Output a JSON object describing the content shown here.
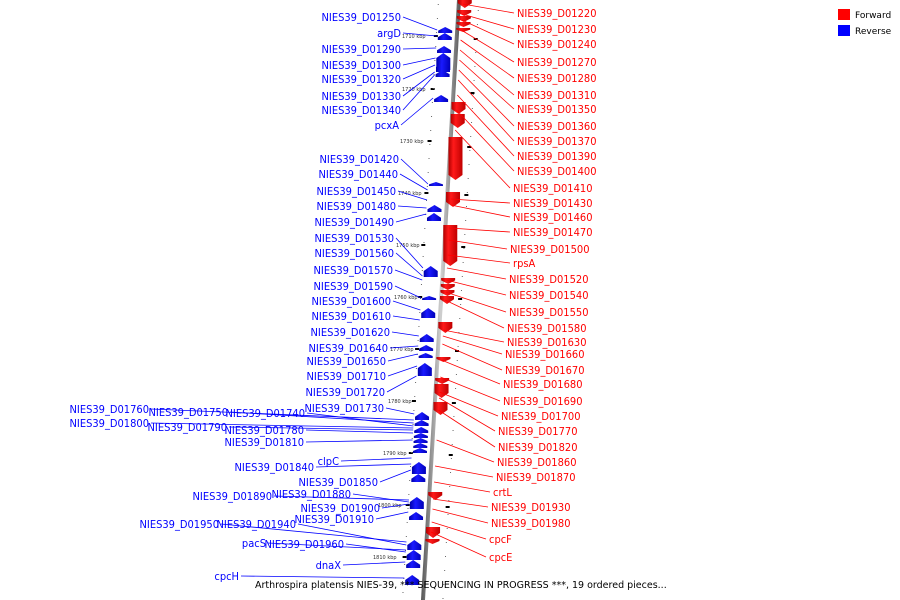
{
  "legend": [
    {
      "label": "Forward",
      "color": "#ff0000"
    },
    {
      "label": "Reverse",
      "color": "#0000ff"
    }
  ],
  "caption": "Arthrospira platensis NIES-39, *** SEQUENCING IN PROGRESS ***, 19 ordered pieces...",
  "ticks": [
    "1710 kbp",
    "1720 kbp",
    "1730 kbp",
    "1740 kbp",
    "1750 kbp",
    "1760 kbp",
    "1770 kbp",
    "1780 kbp",
    "1790 kbp",
    "1800 kbp",
    "1810 kbp"
  ],
  "forward_labels": [
    "NIES39_D01220",
    "NIES39_D01230",
    "NIES39_D01240",
    "NIES39_D01270",
    "NIES39_D01280",
    "NIES39_D01310",
    "NIES39_D01350",
    "NIES39_D01360",
    "NIES39_D01370",
    "NIES39_D01390",
    "NIES39_D01400",
    "NIES39_D01410",
    "NIES39_D01430",
    "NIES39_D01460",
    "NIES39_D01470",
    "NIES39_D01500",
    "rpsA",
    "NIES39_D01520",
    "NIES39_D01540",
    "NIES39_D01550",
    "NIES39_D01580",
    "NIES39_D01630",
    "NIES39_D01660",
    "NIES39_D01670",
    "NIES39_D01680",
    "NIES39_D01690",
    "NIES39_D01700",
    "NIES39_D01770",
    "NIES39_D01820",
    "NIES39_D01860",
    "NIES39_D01870",
    "crtL",
    "NIES39_D01930",
    "NIES39_D01980",
    "cpcF",
    "cpcE"
  ],
  "reverse_labels": [
    "NIES39_D01250",
    "argD",
    "NIES39_D01290",
    "NIES39_D01300",
    "NIES39_D01320",
    "NIES39_D01330",
    "NIES39_D01340",
    "pcxA",
    "NIES39_D01420",
    "NIES39_D01440",
    "NIES39_D01450",
    "NIES39_D01480",
    "NIES39_D01490",
    "NIES39_D01530",
    "NIES39_D01560",
    "NIES39_D01570",
    "NIES39_D01590",
    "NIES39_D01600",
    "NIES39_D01610",
    "NIES39_D01620",
    "NIES39_D01640",
    "NIES39_D01650",
    "NIES39_D01710",
    "NIES39_D01720",
    "NIES39_D01730",
    "NIES39_D01760",
    "NIES39_D01750",
    "NIES39_D01740",
    "NIES39_D01800",
    "NIES39_D01790",
    "NIES39_D01780",
    "NIES39_D01810",
    "clpC",
    "NIES39_D01840",
    "NIES39_D01850",
    "NIES39_D01890",
    "NIES39_D01880",
    "NIES39_D01900",
    "NIES39_D01910",
    "NIES39_D01950",
    "NIES39_D01940",
    "pacS",
    "NIES39_D01960",
    "dnaX",
    "cpcH"
  ]
}
